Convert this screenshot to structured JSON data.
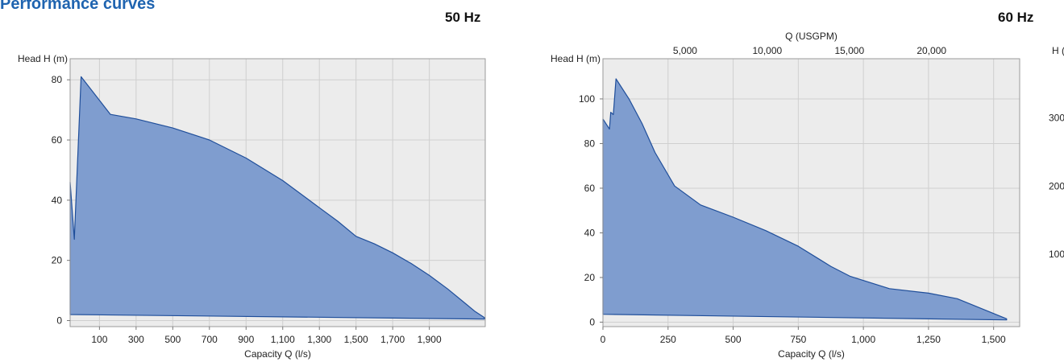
{
  "page": {
    "title": "Performance curves"
  },
  "chart_data": [
    {
      "type": "area",
      "frequency_label": "50 Hz",
      "xlabel": "Capacity Q (l/s)",
      "ylabel": "Head H (m)",
      "xlim": [
        -60,
        2205
      ],
      "ylim": [
        -2,
        87
      ],
      "xticks": [
        100,
        300,
        500,
        700,
        900,
        1100,
        1300,
        1500,
        1700,
        1900
      ],
      "xtick_labels": [
        "100",
        "300",
        "500",
        "700",
        "900",
        "1,100",
        "1,300",
        "1,500",
        "1,700",
        "1,900"
      ],
      "yticks": [
        0,
        20,
        40,
        60,
        80
      ],
      "ytick_labels": [
        "0",
        "20",
        "40",
        "60",
        "80"
      ],
      "grid": true,
      "fill_color": "#7f9dcf",
      "line_color": "#1f4e9a",
      "upper_envelope": {
        "x": [
          -60,
          -37,
          0,
          0,
          160,
          300,
          500,
          700,
          900,
          1100,
          1300,
          1400,
          1500,
          1600,
          1700,
          1800,
          1900,
          2000,
          2100,
          2150,
          2200
        ],
        "y": [
          46,
          27,
          81,
          81,
          68.5,
          67,
          64,
          60,
          54,
          46.5,
          37.5,
          33,
          28,
          25.5,
          22.5,
          19,
          15,
          10.5,
          5.5,
          3,
          1
        ]
      },
      "lower_envelope": {
        "x": [
          -60,
          2200
        ],
        "y": [
          2,
          0.5
        ]
      }
    },
    {
      "type": "area",
      "frequency_label": "60 Hz",
      "xlabel": "Capacity Q (l/s)",
      "ylabel": "Head H (m)",
      "x2label": "Q (USGPM)",
      "y2label": "H (ft)",
      "xlim": [
        0,
        1600
      ],
      "ylim": [
        -2,
        118
      ],
      "xticks": [
        0,
        250,
        500,
        750,
        1000,
        1250,
        1500
      ],
      "xtick_labels": [
        "0",
        "250",
        "500",
        "750",
        "1,000",
        "1,250",
        "1,500"
      ],
      "yticks": [
        0,
        20,
        40,
        60,
        80,
        100
      ],
      "ytick_labels": [
        "0",
        "20",
        "40",
        "60",
        "80",
        "100"
      ],
      "x2ticks": [
        5000,
        10000,
        15000,
        20000
      ],
      "x2tick_labels": [
        "5,000",
        "10,000",
        "15,000",
        "20,000"
      ],
      "y2ticks": [
        100,
        200,
        300
      ],
      "y2tick_labels": [
        "100",
        "200",
        "300"
      ],
      "grid": true,
      "fill_color": "#7f9dcf",
      "line_color": "#1f4e9a",
      "upper_envelope": {
        "x": [
          0,
          25,
          30,
          40,
          50,
          100,
          150,
          200,
          275,
          375,
          500,
          625,
          750,
          875,
          950,
          1100,
          1250,
          1360,
          1550
        ],
        "y": [
          91,
          86.5,
          94,
          93,
          109,
          100,
          89,
          76,
          61,
          52.5,
          47,
          41,
          34,
          25,
          20.5,
          15,
          13,
          10.5,
          1.5
        ]
      },
      "lower_envelope": {
        "x": [
          0,
          1550
        ],
        "y": [
          3.5,
          1
        ]
      }
    }
  ]
}
